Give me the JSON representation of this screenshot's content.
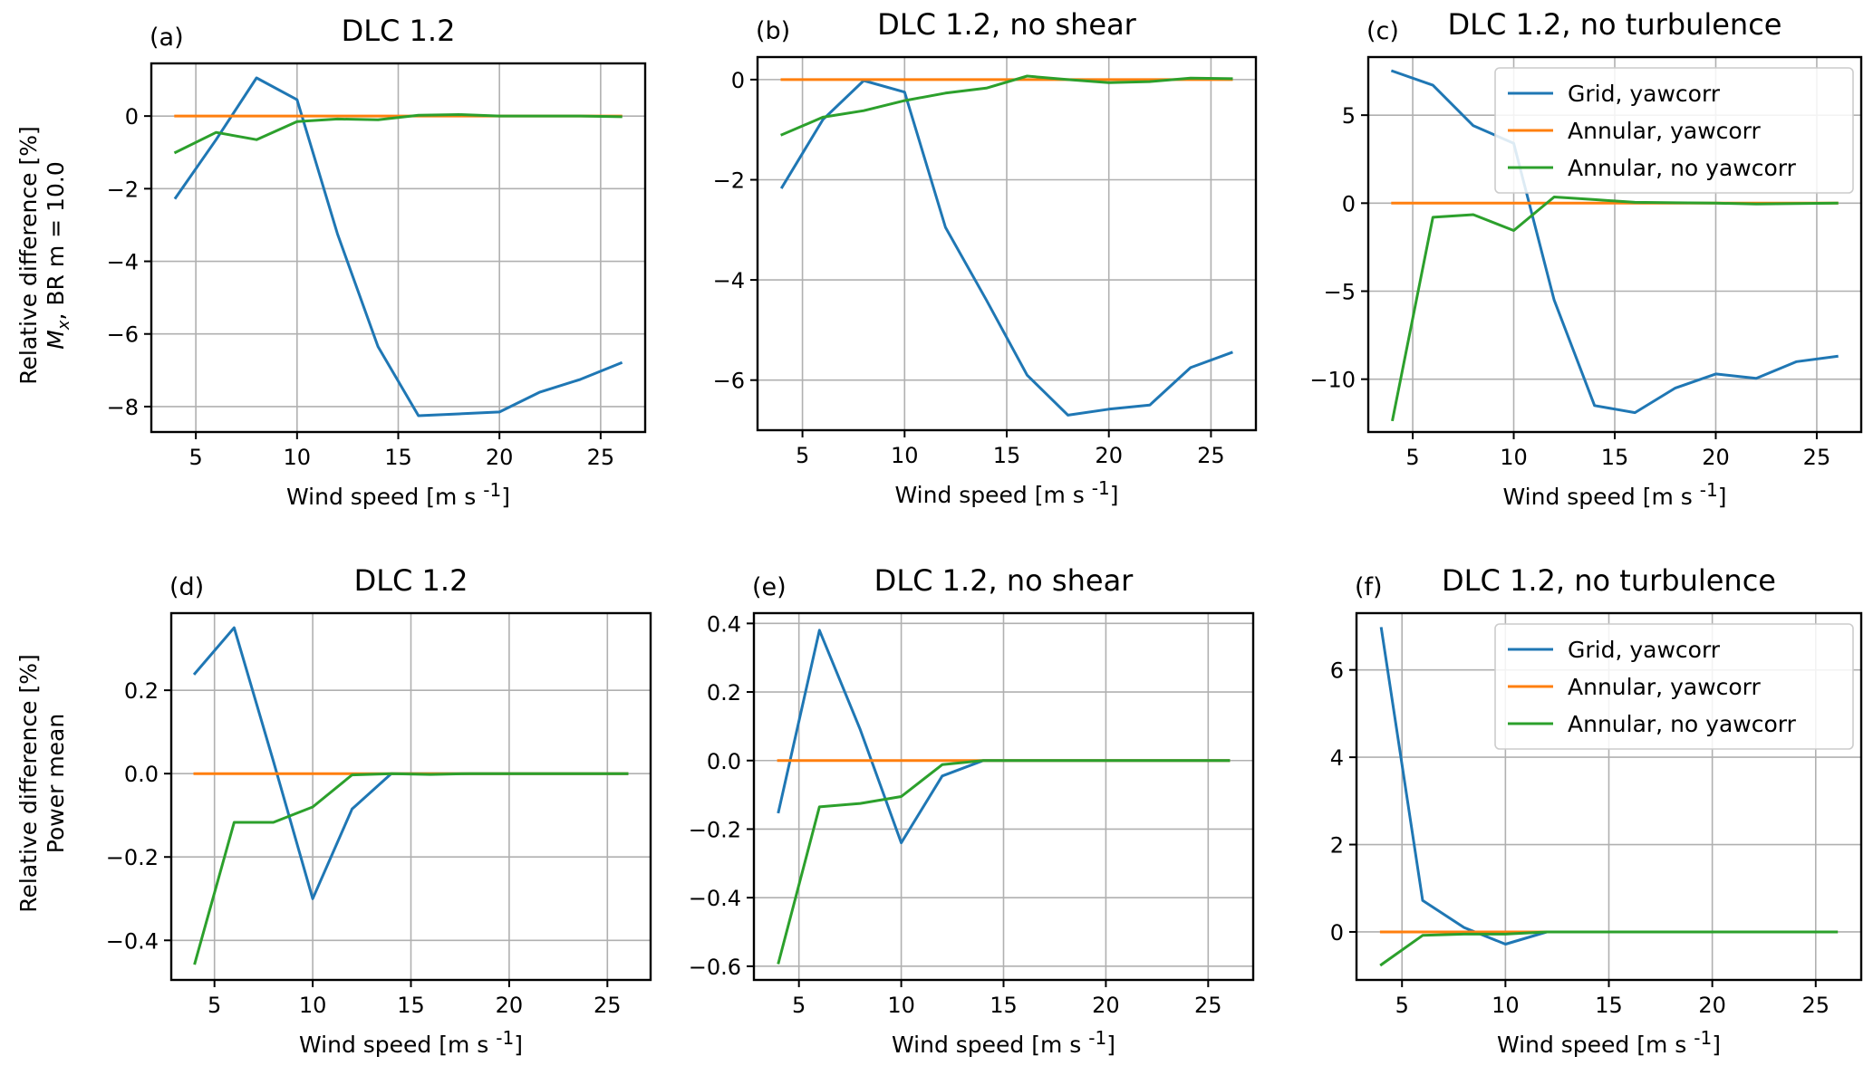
{
  "colors": {
    "grid_yawcorr": "#1f77b4",
    "annular_yawcorr": "#ff7f0e",
    "annular_no_yawcorr": "#2ca02c",
    "gridlines": "#b0b0b0",
    "axes": "#000000"
  },
  "row_ylabels": {
    "top": [
      "Relative difference [%]",
      "M",
      "x",
      ", BR  m = 10.0"
    ],
    "bottom": [
      "Relative difference [%]",
      "Power mean"
    ]
  },
  "chart_data": [
    {
      "id": "a",
      "type": "line",
      "letter": "(a)",
      "title": "DLC 1.2",
      "xlabel_main": "Wind speed [m s",
      "xlabel_sup": "-1",
      "xlabel_end": "]",
      "xlim": [
        2.8,
        27.2
      ],
      "ylim": [
        -8.7,
        1.45
      ],
      "xticks": [
        5,
        10,
        15,
        20,
        25
      ],
      "yticks": [
        -8,
        -6,
        -4,
        -2,
        0
      ],
      "ytick_labels": [
        "−8",
        "−6",
        "−4",
        "−2",
        "0"
      ],
      "x": [
        4,
        6,
        8,
        10,
        12,
        14,
        16,
        18,
        20,
        22,
        24,
        26
      ],
      "legend": null,
      "series": [
        {
          "name": "Grid, yawcorr",
          "color_key": "grid_yawcorr",
          "values": [
            -2.25,
            -0.65,
            1.05,
            0.45,
            -3.25,
            -6.35,
            -8.25,
            -8.2,
            -8.15,
            -7.6,
            -7.25,
            -6.8
          ]
        },
        {
          "name": "Annular, yawcorr",
          "color_key": "annular_yawcorr",
          "values": [
            0,
            0,
            0,
            0,
            0,
            0,
            0,
            0,
            0,
            0,
            0,
            0
          ]
        },
        {
          "name": "Annular, no yawcorr",
          "color_key": "annular_no_yawcorr",
          "values": [
            -1.0,
            -0.45,
            -0.65,
            -0.15,
            -0.08,
            -0.1,
            0.02,
            0.04,
            0.0,
            0.0,
            0.0,
            -0.02
          ]
        }
      ]
    },
    {
      "id": "b",
      "type": "line",
      "letter": "(b)",
      "title": "DLC 1.2, no shear",
      "xlabel_main": "Wind speed [m s",
      "xlabel_sup": "-1",
      "xlabel_end": "]",
      "xlim": [
        2.8,
        27.2
      ],
      "ylim": [
        -7.0,
        0.45
      ],
      "xticks": [
        5,
        10,
        15,
        20,
        25
      ],
      "yticks": [
        -6,
        -4,
        -2,
        0
      ],
      "ytick_labels": [
        "−6",
        "−4",
        "−2",
        "0"
      ],
      "x": [
        4,
        6,
        8,
        10,
        12,
        14,
        16,
        18,
        20,
        22,
        24,
        26
      ],
      "legend": null,
      "series": [
        {
          "name": "Grid, yawcorr",
          "color_key": "grid_yawcorr",
          "values": [
            -2.15,
            -0.8,
            -0.02,
            -0.25,
            -2.95,
            -4.4,
            -5.9,
            -6.7,
            -6.58,
            -6.5,
            -5.75,
            -5.45
          ]
        },
        {
          "name": "Annular, yawcorr",
          "color_key": "annular_yawcorr",
          "values": [
            0,
            0,
            0,
            0,
            0,
            0,
            0,
            0,
            0,
            0,
            0,
            0
          ]
        },
        {
          "name": "Annular, no yawcorr",
          "color_key": "annular_no_yawcorr",
          "values": [
            -1.1,
            -0.75,
            -0.62,
            -0.42,
            -0.27,
            -0.17,
            0.07,
            0.0,
            -0.06,
            -0.04,
            0.03,
            0.02
          ]
        }
      ]
    },
    {
      "id": "c",
      "type": "line",
      "letter": "(c)",
      "title": "DLC 1.2, no turbulence",
      "xlabel_main": "Wind speed [m s",
      "xlabel_sup": "-1",
      "xlabel_end": "]",
      "xlim": [
        2.8,
        27.2
      ],
      "ylim": [
        -13.0,
        8.3
      ],
      "xticks": [
        5,
        10,
        15,
        20,
        25
      ],
      "yticks": [
        -10,
        -5,
        0,
        5
      ],
      "ytick_labels": [
        "−10",
        "−5",
        "0",
        "5"
      ],
      "x": [
        4,
        6,
        8,
        10,
        12,
        14,
        16,
        18,
        20,
        22,
        24,
        26
      ],
      "legend": {
        "placement": "upper right",
        "entries": [
          "Grid, yawcorr",
          "Annular, yawcorr",
          "Annular, no yawcorr"
        ]
      },
      "series": [
        {
          "name": "Grid, yawcorr",
          "color_key": "grid_yawcorr",
          "values": [
            7.5,
            6.7,
            4.4,
            3.4,
            -5.5,
            -11.5,
            -11.9,
            -10.5,
            -9.7,
            -9.95,
            -9.0,
            -8.7
          ]
        },
        {
          "name": "Annular, yawcorr",
          "color_key": "annular_yawcorr",
          "values": [
            0,
            0,
            0,
            0,
            0,
            0,
            0,
            0,
            0,
            0,
            0,
            0
          ]
        },
        {
          "name": "Annular, no yawcorr",
          "color_key": "annular_no_yawcorr",
          "values": [
            -12.3,
            -0.8,
            -0.65,
            -1.55,
            0.35,
            0.2,
            0.05,
            0.02,
            0.0,
            -0.05,
            -0.02,
            0.0
          ]
        }
      ]
    },
    {
      "id": "d",
      "type": "line",
      "letter": "(d)",
      "title": "DLC 1.2",
      "xlabel_main": "Wind speed [m s",
      "xlabel_sup": "-1",
      "xlabel_end": "]",
      "xlim": [
        2.8,
        27.2
      ],
      "ylim": [
        -0.495,
        0.385
      ],
      "xticks": [
        5,
        10,
        15,
        20,
        25
      ],
      "yticks": [
        -0.4,
        -0.2,
        0.0,
        0.2
      ],
      "ytick_labels": [
        "−0.4",
        "−0.2",
        "0.0",
        "0.2"
      ],
      "x": [
        4,
        6,
        8,
        10,
        12,
        14,
        16,
        18,
        20,
        22,
        24,
        26
      ],
      "legend": null,
      "series": [
        {
          "name": "Grid, yawcorr",
          "color_key": "grid_yawcorr",
          "values": [
            0.24,
            0.35,
            0.03,
            -0.3,
            -0.085,
            0.0,
            0.0,
            0.0,
            0.0,
            0.0,
            0.0,
            0.0
          ]
        },
        {
          "name": "Annular, yawcorr",
          "color_key": "annular_yawcorr",
          "values": [
            0,
            0,
            0,
            0,
            0,
            0,
            0,
            0,
            0,
            0,
            0,
            0
          ]
        },
        {
          "name": "Annular, no yawcorr",
          "color_key": "annular_no_yawcorr",
          "values": [
            -0.455,
            -0.117,
            -0.117,
            -0.08,
            -0.003,
            0.0,
            -0.002,
            0.0,
            0.0,
            0.0,
            0.0,
            0.0
          ]
        }
      ]
    },
    {
      "id": "e",
      "type": "line",
      "letter": "(e)",
      "title": "DLC 1.2, no shear",
      "xlabel_main": "Wind speed [m s",
      "xlabel_sup": "-1",
      "xlabel_end": "]",
      "xlim": [
        2.8,
        27.2
      ],
      "ylim": [
        -0.64,
        0.43
      ],
      "xticks": [
        5,
        10,
        15,
        20,
        25
      ],
      "yticks": [
        -0.6,
        -0.4,
        -0.2,
        0.0,
        0.2,
        0.4
      ],
      "ytick_labels": [
        "−0.6",
        "−0.4",
        "−0.2",
        "0.0",
        "0.2",
        "0.4"
      ],
      "x": [
        4,
        6,
        8,
        10,
        12,
        14,
        16,
        18,
        20,
        22,
        24,
        26
      ],
      "legend": null,
      "series": [
        {
          "name": "Grid, yawcorr",
          "color_key": "grid_yawcorr",
          "values": [
            -0.15,
            0.38,
            0.09,
            -0.24,
            -0.045,
            0.0,
            0.0,
            0.0,
            0.0,
            0.0,
            0.0,
            0.0
          ]
        },
        {
          "name": "Annular, yawcorr",
          "color_key": "annular_yawcorr",
          "values": [
            0,
            0,
            0,
            0,
            0,
            0,
            0,
            0,
            0,
            0,
            0,
            0
          ]
        },
        {
          "name": "Annular, no yawcorr",
          "color_key": "annular_no_yawcorr",
          "values": [
            -0.59,
            -0.135,
            -0.125,
            -0.105,
            -0.012,
            0.0,
            0.0,
            0.0,
            0.0,
            0.0,
            0.0,
            0.0
          ]
        }
      ]
    },
    {
      "id": "f",
      "type": "line",
      "letter": "(f)",
      "title": "DLC 1.2, no turbulence",
      "xlabel_main": "Wind speed [m s",
      "xlabel_sup": "-1",
      "xlabel_end": "]",
      "xlim": [
        2.8,
        27.2
      ],
      "ylim": [
        -1.1,
        7.3
      ],
      "xticks": [
        5,
        10,
        15,
        20,
        25
      ],
      "yticks": [
        0,
        2,
        4,
        6
      ],
      "ytick_labels": [
        "0",
        "2",
        "4",
        "6"
      ],
      "x": [
        4,
        6,
        8,
        10,
        12,
        14,
        16,
        18,
        20,
        22,
        24,
        26
      ],
      "legend": {
        "placement": "upper right",
        "entries": [
          "Grid, yawcorr",
          "Annular, yawcorr",
          "Annular, no yawcorr"
        ]
      },
      "series": [
        {
          "name": "Grid, yawcorr",
          "color_key": "grid_yawcorr",
          "values": [
            6.95,
            0.72,
            0.1,
            -0.28,
            0.0,
            0.0,
            0.0,
            0.0,
            0.0,
            0.0,
            0.0,
            0.0
          ]
        },
        {
          "name": "Annular, yawcorr",
          "color_key": "annular_yawcorr",
          "values": [
            0,
            0,
            0,
            0,
            0,
            0,
            0,
            0,
            0,
            0,
            0,
            0
          ]
        },
        {
          "name": "Annular, no yawcorr",
          "color_key": "annular_no_yawcorr",
          "values": [
            -0.75,
            -0.08,
            -0.05,
            -0.05,
            0.0,
            0.0,
            0.0,
            0.0,
            0.0,
            0.0,
            0.0,
            0.0
          ]
        }
      ]
    }
  ]
}
